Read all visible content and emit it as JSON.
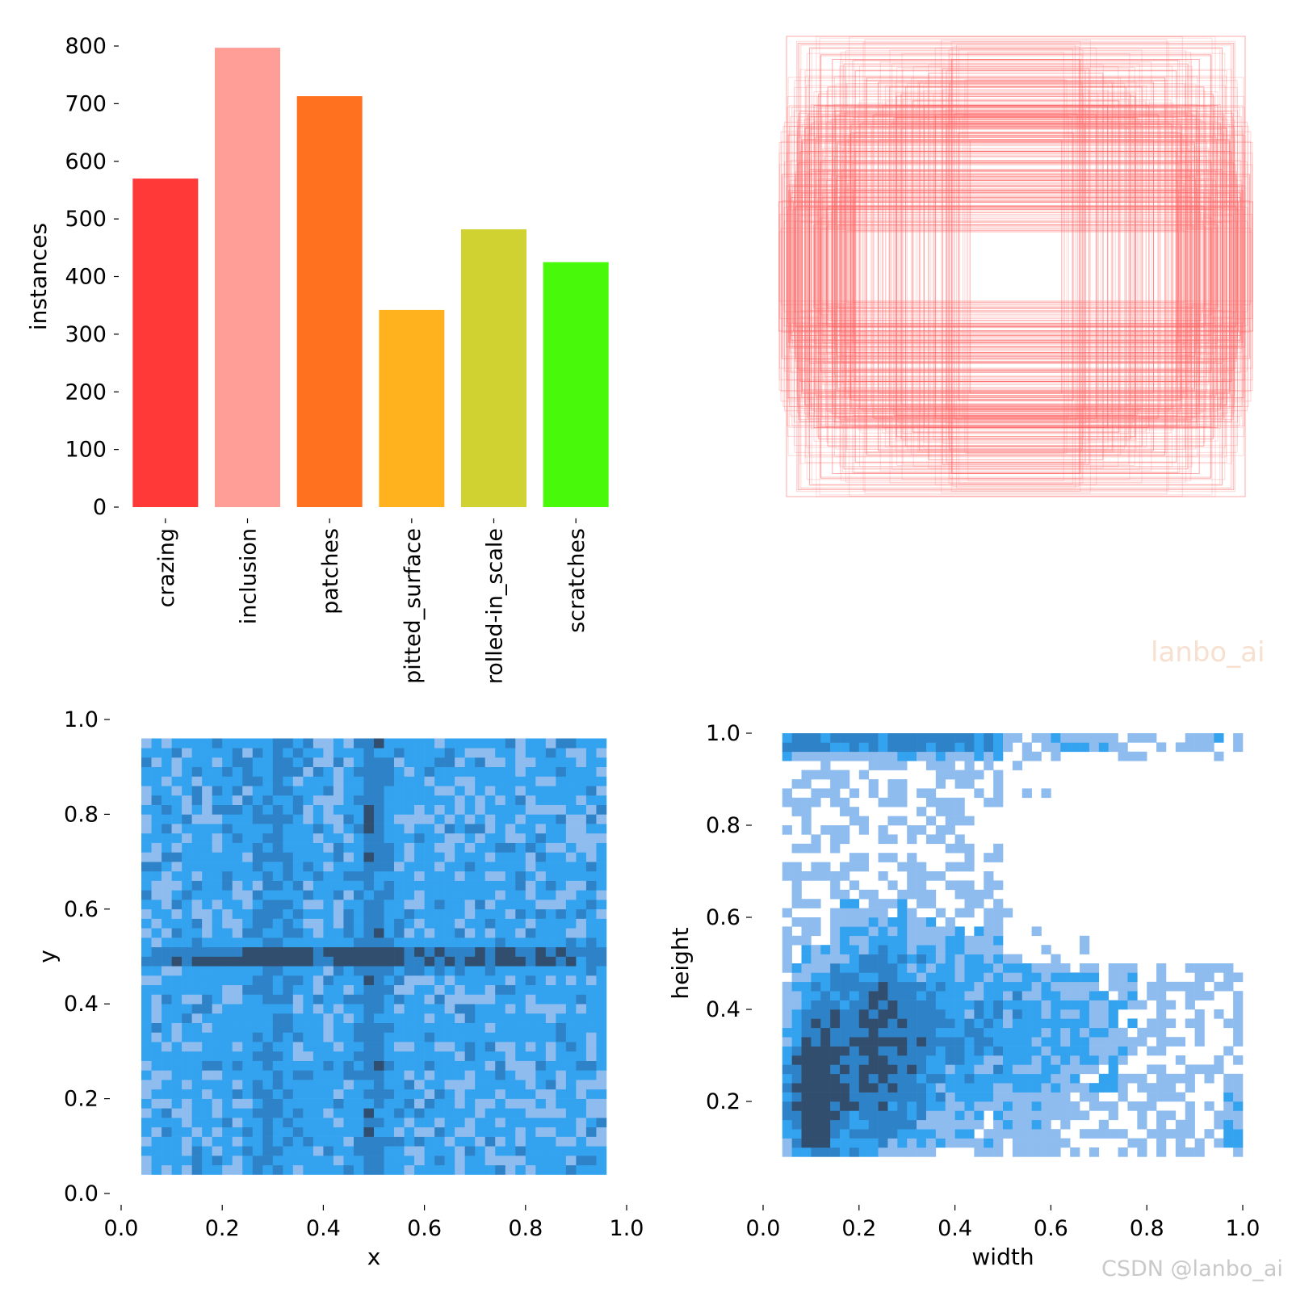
{
  "chart_data": [
    {
      "panel": "labels",
      "type": "bar",
      "categories": [
        "crazing",
        "inclusion",
        "patches",
        "pitted_surface",
        "rolled-in_scale",
        "scratches"
      ],
      "values": [
        570,
        797,
        713,
        342,
        482,
        425
      ],
      "colors": [
        "#ff3838",
        "#ff9d97",
        "#ff701f",
        "#ffb21d",
        "#cfd231",
        "#48f90a"
      ],
      "xlabel": "",
      "ylabel": "instances",
      "ylim": [
        0,
        800
      ],
      "yticks": [
        0,
        100,
        200,
        300,
        400,
        500,
        600,
        700,
        800
      ],
      "grid": false
    },
    {
      "panel": "box_overlay",
      "type": "other",
      "description_color": "#ff6464",
      "boxes_wh": [
        [
          1.0,
          1.0
        ],
        [
          0.95,
          0.97
        ],
        [
          0.9,
          0.95
        ],
        [
          0.85,
          0.92
        ],
        [
          0.8,
          0.9
        ],
        [
          0.75,
          0.88
        ],
        [
          0.7,
          0.85
        ],
        [
          0.65,
          0.82
        ],
        [
          0.6,
          0.8
        ],
        [
          0.55,
          0.78
        ],
        [
          0.5,
          0.75
        ],
        [
          0.45,
          0.72
        ],
        [
          0.4,
          0.7
        ],
        [
          0.35,
          0.66
        ],
        [
          0.3,
          0.62
        ],
        [
          0.25,
          0.58
        ],
        [
          0.2,
          0.55
        ],
        [
          0.98,
          0.3
        ],
        [
          0.97,
          0.28
        ],
        [
          0.96,
          0.26
        ],
        [
          0.95,
          0.45
        ],
        [
          0.94,
          0.5
        ],
        [
          0.93,
          0.55
        ],
        [
          0.92,
          0.6
        ],
        [
          0.9,
          0.65
        ],
        [
          0.88,
          0.7
        ],
        [
          0.86,
          0.75
        ],
        [
          0.82,
          0.78
        ],
        [
          1.02,
          0.4
        ],
        [
          1.0,
          0.35
        ],
        [
          0.99,
          0.33
        ],
        [
          0.98,
          0.32
        ],
        [
          0.9,
          0.42
        ],
        [
          0.85,
          0.46
        ],
        [
          0.8,
          0.5
        ],
        [
          0.78,
          0.54
        ],
        [
          0.72,
          0.58
        ],
        [
          0.68,
          0.62
        ],
        [
          0.62,
          0.66
        ],
        [
          0.58,
          0.7
        ],
        [
          0.52,
          0.74
        ],
        [
          0.48,
          0.78
        ],
        [
          0.42,
          0.8
        ],
        [
          0.38,
          0.84
        ],
        [
          0.32,
          0.86
        ],
        [
          0.28,
          0.9
        ],
        [
          0.5,
          0.6
        ],
        [
          0.6,
          0.55
        ],
        [
          0.7,
          0.5
        ],
        [
          0.96,
          0.4
        ]
      ]
    },
    {
      "panel": "xy",
      "type": "heatmap",
      "xlabel": "x",
      "ylabel": "y",
      "xlim": [
        0.0,
        1.0
      ],
      "ylim": [
        0.0,
        1.0
      ],
      "xticks": [
        "0.0",
        "0.2",
        "0.4",
        "0.6",
        "0.8",
        "1.0"
      ],
      "yticks": [
        "0.0",
        "0.2",
        "0.4",
        "0.6",
        "0.8",
        "1.0"
      ],
      "bins": 50,
      "data_extent": {
        "x": [
          0.04,
          0.96
        ],
        "y": [
          0.04,
          0.96
        ]
      },
      "colors": [
        "#8fbcef",
        "#33a3f0",
        "#2e83c8",
        "#324e6e"
      ]
    },
    {
      "panel": "wh",
      "type": "heatmap",
      "xlabel": "width",
      "ylabel": "height",
      "xlim": [
        0.0,
        1.0
      ],
      "ylim": [
        0.0,
        1.0
      ],
      "xticks": [
        "0.0",
        "0.2",
        "0.4",
        "0.6",
        "0.8",
        "1.0"
      ],
      "yticks": [
        "0.2",
        "0.4",
        "0.6",
        "0.8",
        "1.0"
      ],
      "bins": 50,
      "data_extent": {
        "x": [
          0.04,
          1.0
        ],
        "y": [
          0.08,
          1.0
        ]
      },
      "colors": [
        "#8fbcef",
        "#33a3f0",
        "#2e83c8",
        "#324e6e"
      ]
    }
  ],
  "watermarks": {
    "center": "lanbo_ai",
    "corner": "CSDN @lanbo_ai"
  }
}
